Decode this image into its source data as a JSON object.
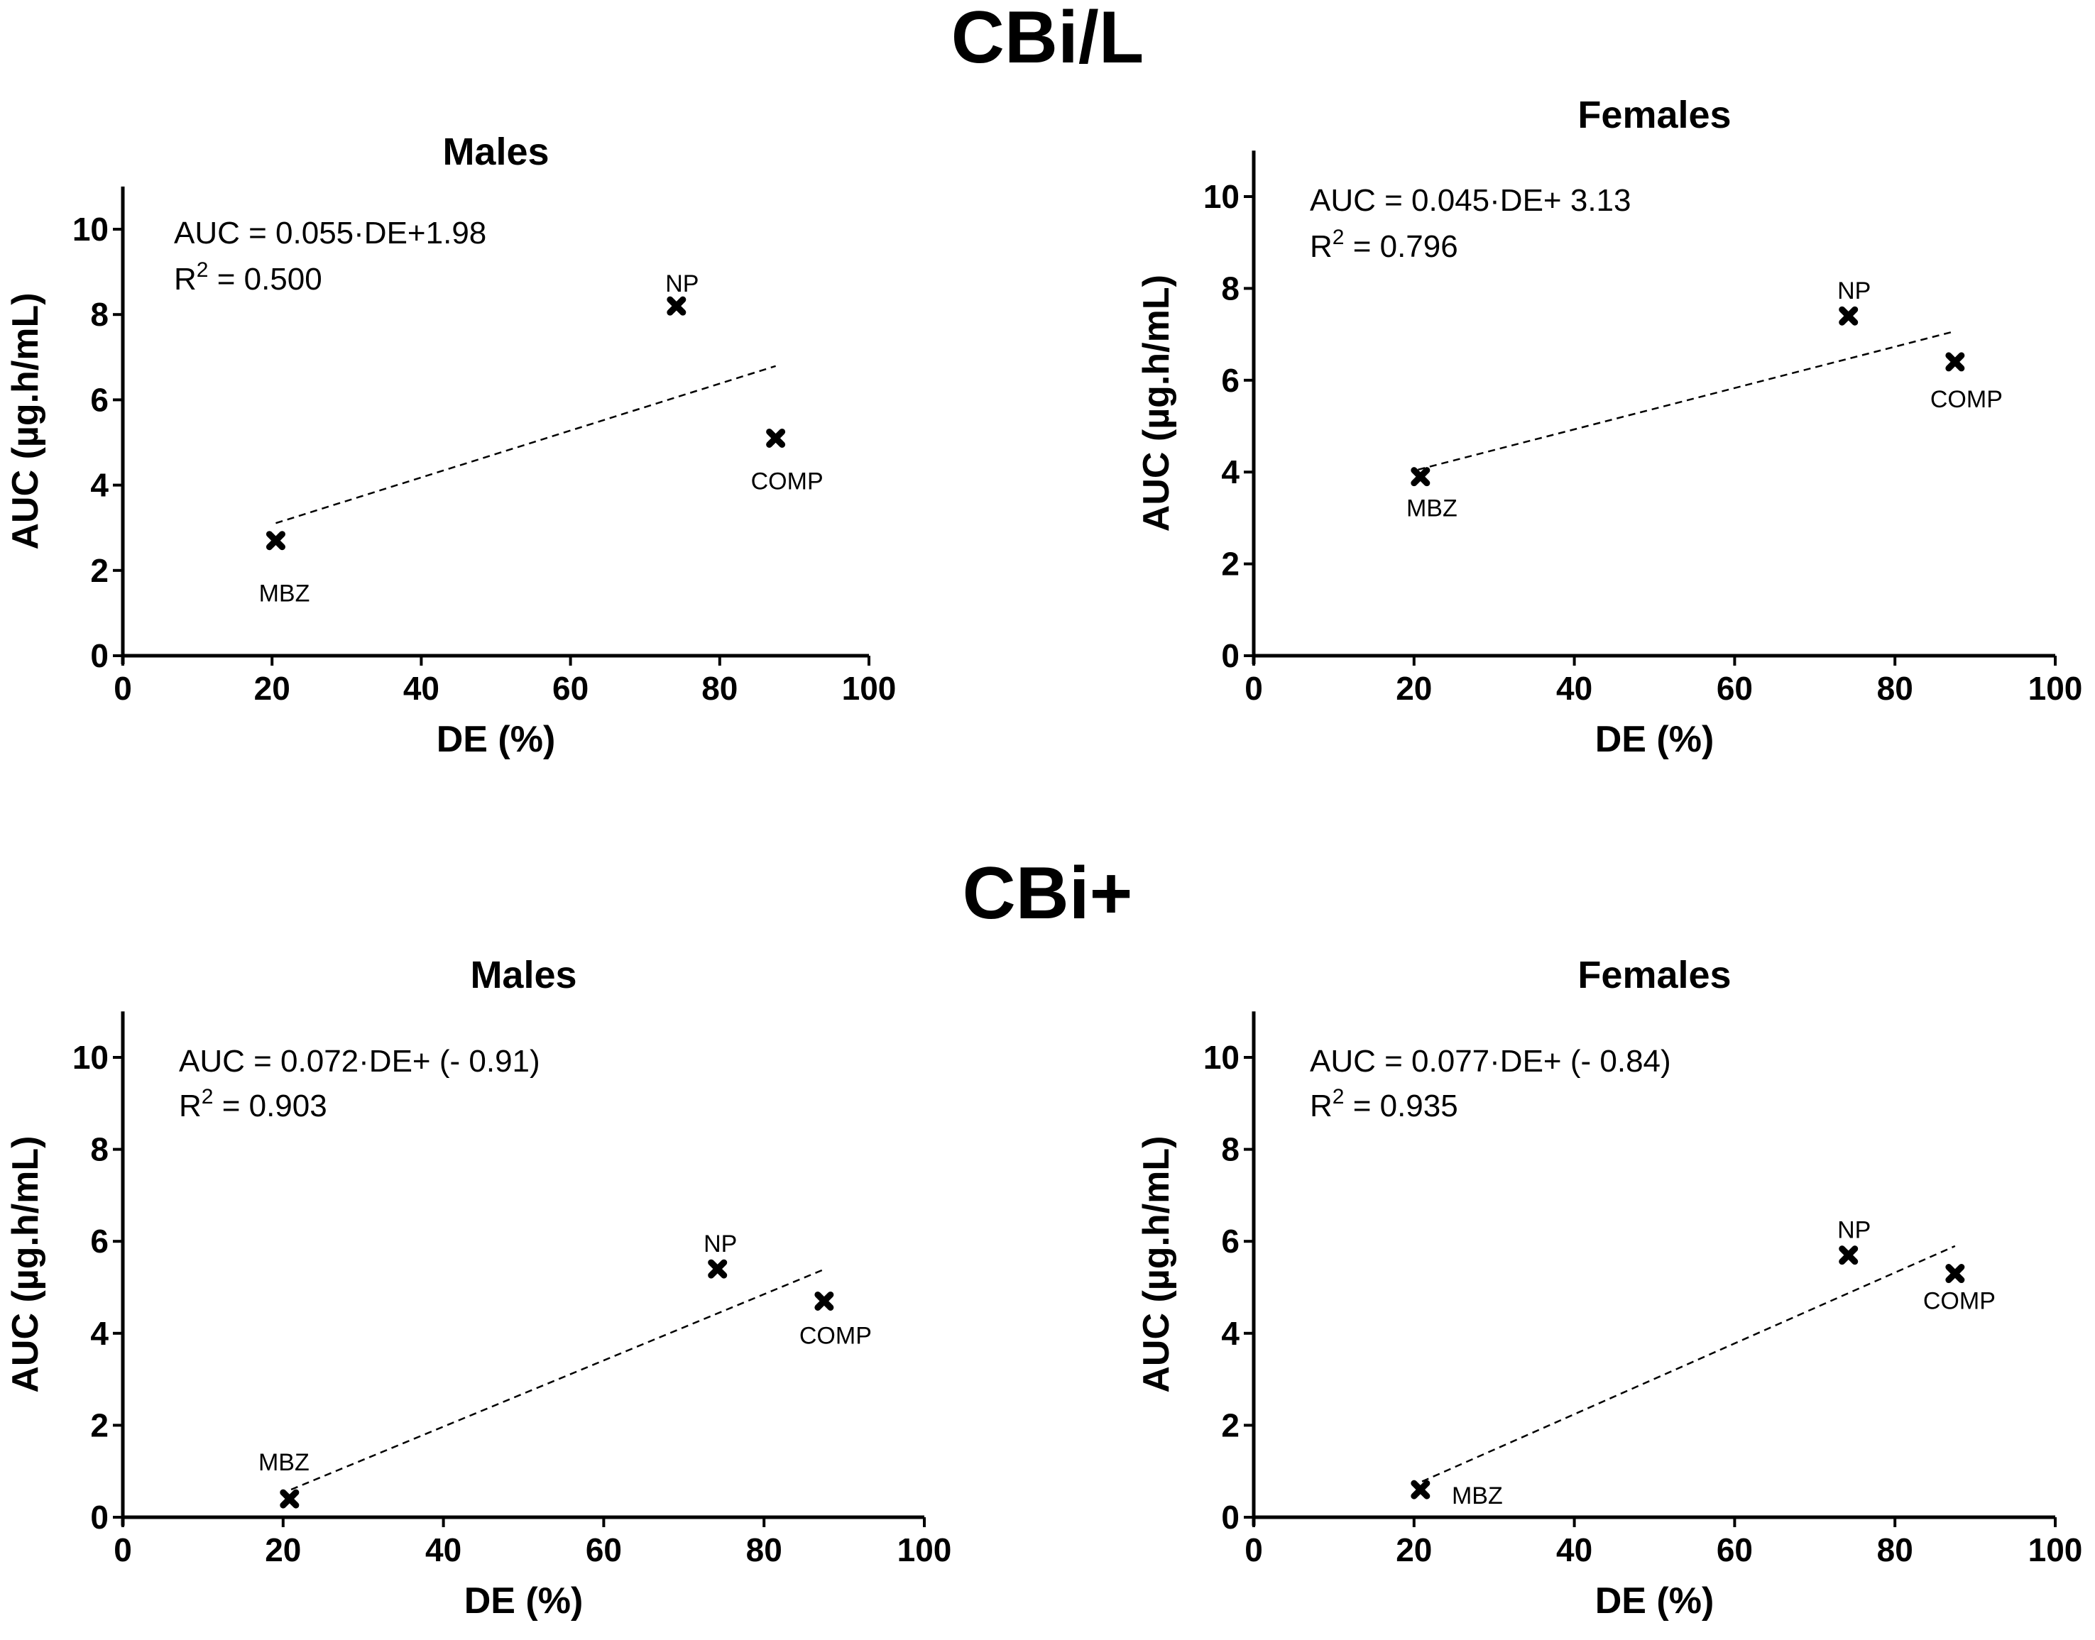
{
  "figure": {
    "section_titles": [
      "CBi/L",
      "CBi+"
    ]
  },
  "chart_data": [
    {
      "type": "scatter",
      "section": "CBi/L",
      "title": "Males",
      "xlabel": "DE (%)",
      "ylabel": "AUC (µg.h/mL)",
      "xlim": [
        0,
        100
      ],
      "ylim": [
        0,
        11
      ],
      "xticks": [
        0,
        20,
        40,
        60,
        80,
        100
      ],
      "yticks": [
        0,
        2,
        4,
        6,
        8,
        10
      ],
      "equation": "AUC  = 0.055·DE+1.98",
      "r2_prefix": "R",
      "r2_sup": "2",
      "r2_value": " = 0.500",
      "fit": {
        "slope": 0.055,
        "intercept": 1.98,
        "x_start": 20.5,
        "x_end": 87.5
      },
      "points": [
        {
          "label": "MBZ",
          "x": 20.5,
          "y": 2.7
        },
        {
          "label": "NP",
          "x": 74.2,
          "y": 8.2
        },
        {
          "label": "COMP",
          "x": 87.5,
          "y": 5.1
        }
      ]
    },
    {
      "type": "scatter",
      "section": "CBi/L",
      "title": "Females",
      "xlabel": "DE (%)",
      "ylabel": "AUC (µg.h/mL)",
      "xlim": [
        0,
        100
      ],
      "ylim": [
        0,
        11
      ],
      "xticks": [
        0,
        20,
        40,
        60,
        80,
        100
      ],
      "yticks": [
        0,
        2,
        4,
        6,
        8,
        10
      ],
      "equation": "AUC  = 0.045·DE+ 3.13",
      "r2_prefix": "R",
      "r2_sup": "2",
      "r2_value": " = 0.796",
      "fit": {
        "slope": 0.045,
        "intercept": 3.13,
        "x_start": 20.5,
        "x_end": 87.5
      },
      "points": [
        {
          "label": "MBZ",
          "x": 20.8,
          "y": 3.9
        },
        {
          "label": "NP",
          "x": 74.2,
          "y": 7.4
        },
        {
          "label": "COMP",
          "x": 87.5,
          "y": 6.4
        }
      ]
    },
    {
      "type": "scatter",
      "section": "CBi+",
      "title": "Males",
      "xlabel": "DE (%)",
      "ylabel": "AUC (µg.h/mL)",
      "xlim": [
        0,
        100
      ],
      "ylim": [
        0,
        11
      ],
      "xticks": [
        0,
        20,
        40,
        60,
        80,
        100
      ],
      "yticks": [
        0,
        2,
        4,
        6,
        8,
        10
      ],
      "equation": "AUC  = 0.072·DE+ (- 0.91)",
      "r2_prefix": "R",
      "r2_sup": "2",
      "r2_value": " = 0.903",
      "fit": {
        "slope": 0.072,
        "intercept": -0.91,
        "x_start": 21.0,
        "x_end": 87.5
      },
      "points": [
        {
          "label": "MBZ",
          "x": 20.8,
          "y": 0.4
        },
        {
          "label": "NP",
          "x": 74.2,
          "y": 5.4
        },
        {
          "label": "COMP",
          "x": 87.5,
          "y": 4.7
        }
      ]
    },
    {
      "type": "scatter",
      "section": "CBi+",
      "title": "Females",
      "xlabel": "DE (%)",
      "ylabel": "AUC (µg.h/mL)",
      "xlim": [
        0,
        100
      ],
      "ylim": [
        0,
        11
      ],
      "xticks": [
        0,
        20,
        40,
        60,
        80,
        100
      ],
      "yticks": [
        0,
        2,
        4,
        6,
        8,
        10
      ],
      "equation": "AUC  = 0.077·DE+ (- 0.84)",
      "r2_prefix": "R",
      "r2_sup": "2",
      "r2_value": " = 0.935",
      "fit": {
        "slope": 0.077,
        "intercept": -0.84,
        "x_start": 21.0,
        "x_end": 87.5
      },
      "points": [
        {
          "label": "MBZ",
          "x": 20.8,
          "y": 0.6
        },
        {
          "label": "NP",
          "x": 74.2,
          "y": 5.7
        },
        {
          "label": "COMP",
          "x": 87.5,
          "y": 5.3
        }
      ]
    }
  ]
}
